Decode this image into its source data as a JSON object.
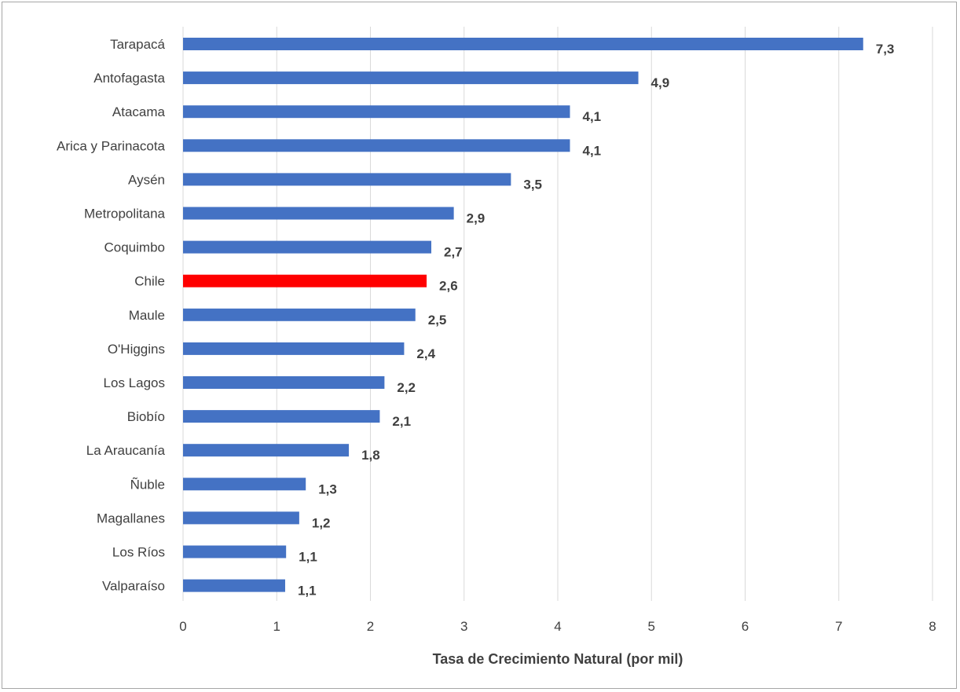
{
  "chart_data": {
    "type": "bar",
    "orientation": "horizontal",
    "categories": [
      "Tarapacá",
      "Antofagasta",
      "Atacama",
      "Arica y Parinacota",
      "Aysén",
      "Metropolitana",
      "Coquimbo",
      "Chile",
      "Maule",
      "O'Higgins",
      "Los Lagos",
      "Biobío",
      "La Araucanía",
      "Ñuble",
      "Magallanes",
      "Los Ríos",
      "Valparaíso"
    ],
    "values": [
      7.26,
      4.86,
      4.13,
      4.13,
      3.5,
      2.89,
      2.65,
      2.6,
      2.48,
      2.36,
      2.15,
      2.1,
      1.77,
      1.31,
      1.24,
      1.1,
      1.09
    ],
    "data_labels": [
      "7,3",
      "4,9",
      "4,1",
      "4,1",
      "3,5",
      "2,9",
      "2,7",
      "2,6",
      "2,5",
      "2,4",
      "2,2",
      "2,1",
      "1,8",
      "1,3",
      "1,2",
      "1,1",
      "1,1"
    ],
    "highlight_category": "Chile",
    "xlabel": "Tasa de Crecimiento Natural (por mil)",
    "ylabel": "",
    "title": "",
    "xlim": [
      0,
      8
    ],
    "xticks": [
      "0",
      "1",
      "2",
      "3",
      "4",
      "5",
      "6",
      "7",
      "8"
    ],
    "grid": "vertical",
    "legend": "none",
    "colors": {
      "bar": "#4472c4",
      "highlight": "#ff0000",
      "text": "#404040",
      "grid": "#d9d9d9"
    }
  }
}
